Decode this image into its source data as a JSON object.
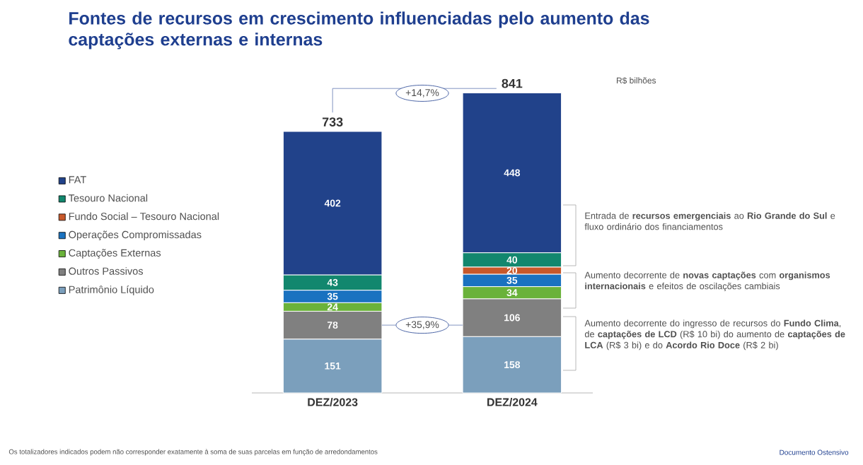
{
  "chart_data": {
    "type": "bar",
    "stacked": true,
    "title": "Fontes de recursos em crescimento influenciadas pelo aumento das captações externas e internas",
    "categories": [
      "DEZ/2023",
      "DEZ/2024"
    ],
    "series": [
      {
        "name": "Patrimônio Líquido",
        "color": "#7b9fbc",
        "values": [
          151,
          158
        ]
      },
      {
        "name": "Outros Passivos",
        "color": "#808080",
        "values": [
          78,
          106
        ]
      },
      {
        "name": "Captações Externas",
        "color": "#6ab23a",
        "values": [
          24,
          34
        ]
      },
      {
        "name": "Operações Compromissadas",
        "color": "#1a72c0",
        "values": [
          35,
          35
        ]
      },
      {
        "name": "Fundo Social – Tesouro Nacional",
        "color": "#c8582a",
        "values": [
          null,
          20
        ]
      },
      {
        "name": "Tesouro Nacional",
        "color": "#12876e",
        "values": [
          43,
          40
        ]
      },
      {
        "name": "FAT",
        "color": "#21428a",
        "values": [
          402,
          448
        ]
      }
    ],
    "totals": [
      "733",
      "841"
    ],
    "data_labels": true,
    "legend": "left",
    "annotations": [
      "+14,7%",
      "+35,9%",
      "R$ bilhões",
      "Entrada de **recursos emergenciais** ao **Rio Grande do Sul** e fluxo ordinário dos financiamentos",
      "Aumento decorrente de **novas captações** com **organismos internacionais** e efeitos de oscilações cambiais",
      "Aumento decorrente do ingresso de recursos do **Fundo Clima**, de **captações de LCD** (R$ 10 bi) do aumento de **captações de LCA** (R$ 3 bi) e do **Acordo Rio Doce** (R$ 2 bi)",
      "Os totalizadores indicados podem não corresponder exatamente à soma de suas parcelas em função de arredondamentos",
      "Documento Ostensivo"
    ]
  }
}
